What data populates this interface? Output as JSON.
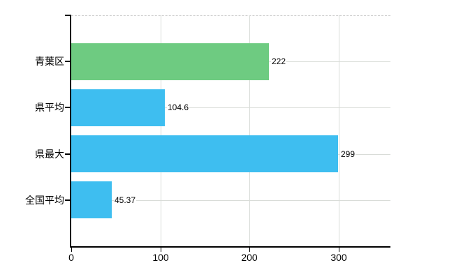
{
  "chart_data": {
    "type": "bar",
    "orientation": "horizontal",
    "categories": [
      "青葉区",
      "県平均",
      "県最大",
      "全国平均"
    ],
    "values": [
      222,
      104.6,
      299,
      45.37
    ],
    "value_labels": [
      "222",
      "104.6",
      "299",
      "45.37"
    ],
    "bar_colors": [
      "#6ecb81",
      "#3ebef0",
      "#3ebef0",
      "#3ebef0"
    ],
    "x_tick_values": [
      0,
      100,
      200,
      300
    ],
    "x_tick_labels": [
      "0",
      "100",
      "200",
      "300"
    ],
    "xlim": [
      0,
      358
    ],
    "grid": true,
    "legend": "none",
    "colors": {
      "bar_green": "#6ecb81",
      "bar_blue": "#3ebef0",
      "grid_line": "#d9dcd8",
      "top_border_dashed": "#c9c9c9",
      "axis": "#000000",
      "label_text": "#000000",
      "background": "#ffffff"
    }
  }
}
